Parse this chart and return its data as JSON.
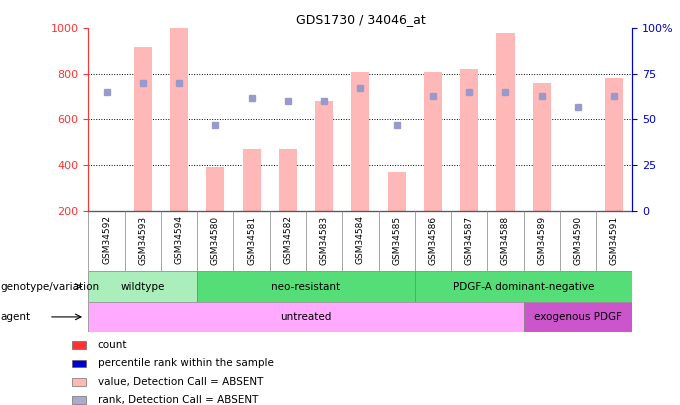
{
  "title": "GDS1730 / 34046_at",
  "samples": [
    "GSM34592",
    "GSM34593",
    "GSM34594",
    "GSM34580",
    "GSM34581",
    "GSM34582",
    "GSM34583",
    "GSM34584",
    "GSM34585",
    "GSM34586",
    "GSM34587",
    "GSM34588",
    "GSM34589",
    "GSM34590",
    "GSM34591"
  ],
  "bar_values": [
    200,
    920,
    1000,
    390,
    470,
    470,
    680,
    810,
    370,
    810,
    820,
    980,
    760,
    200,
    780
  ],
  "rank_values": [
    65,
    70,
    70,
    47,
    62,
    60,
    60,
    67,
    47,
    63,
    65,
    65,
    63,
    57,
    63
  ],
  "ylim_left": [
    200,
    1000
  ],
  "ylim_right": [
    0,
    100
  ],
  "yticks_left": [
    200,
    400,
    600,
    800,
    1000
  ],
  "yticks_right": [
    0,
    25,
    50,
    75,
    100
  ],
  "left_color": "#FF3333",
  "right_color": "#0000CC",
  "bar_color": "#FFB8B8",
  "rank_dot_color": "#9999CC",
  "groups": [
    {
      "label": "wildtype",
      "start": 0,
      "end": 3,
      "color": "#AAEEBB"
    },
    {
      "label": "neo-resistant",
      "start": 3,
      "end": 9,
      "color": "#55DD77"
    },
    {
      "label": "PDGF-A dominant-negative",
      "start": 9,
      "end": 15,
      "color": "#55DD77"
    }
  ],
  "agents": [
    {
      "label": "untreated",
      "start": 0,
      "end": 12,
      "color": "#FFAAFF"
    },
    {
      "label": "exogenous PDGF",
      "start": 12,
      "end": 15,
      "color": "#CC55CC"
    }
  ],
  "legend_items": [
    {
      "label": "count",
      "color": "#FF3333"
    },
    {
      "label": "percentile rank within the sample",
      "color": "#0000CC"
    },
    {
      "label": "value, Detection Call = ABSENT",
      "color": "#FFB8B8"
    },
    {
      "label": "rank, Detection Call = ABSENT",
      "color": "#AAAACC"
    }
  ],
  "genotype_label": "genotype/variation",
  "agent_label": "agent",
  "grid_dotted_color": "#000000",
  "tick_gray": "#AAAAAA",
  "xticklabel_bg": "#DDDDDD"
}
